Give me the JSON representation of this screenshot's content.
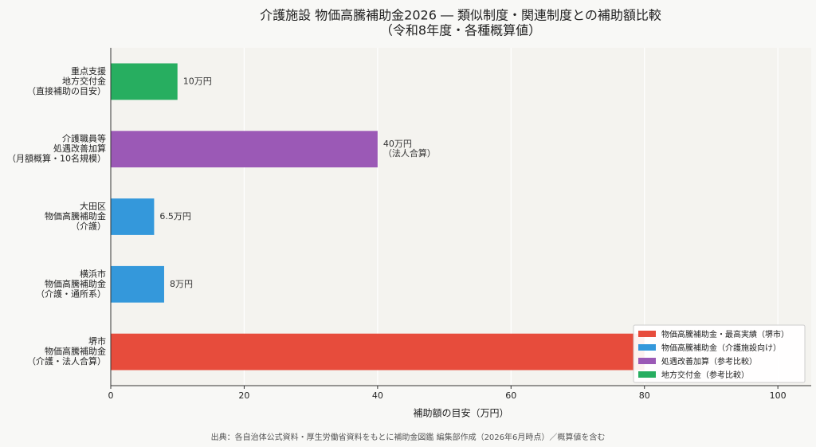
{
  "chart_data": {
    "type": "bar",
    "orientation": "horizontal",
    "title": [
      "介護施設 物価高騰補助金2026 ― 類似制度・関連制度との補助額比較",
      "（令和8年度・各種概算値）"
    ],
    "xlabel": "補助額の目安（万円）",
    "xlim": [
      0,
      105
    ],
    "xticks": [
      0,
      20,
      40,
      60,
      80,
      100
    ],
    "grid": true,
    "legend_position": "bottom-right",
    "legend": [
      {
        "label": "物価高騰補助金・最高実績（堺市）",
        "color": "#e74c3c"
      },
      {
        "label": "物価高騰補助金（介護施設向け）",
        "color": "#3498db"
      },
      {
        "label": "処遇改善加算（参考比較）",
        "color": "#9b59b6"
      },
      {
        "label": "地方交付金（参考比較）",
        "color": "#27ae60"
      }
    ],
    "bars": [
      {
        "category": [
          "重点支援",
          "地方交付金",
          "（直接補助の目安）"
        ],
        "value": 10,
        "color": "#27ae60",
        "label": [
          "10万円"
        ]
      },
      {
        "category": [
          "介護職員等",
          "処遇改善加算",
          "（月額概算・10名規模）"
        ],
        "value": 40,
        "color": "#9b59b6",
        "label": [
          "40万円",
          "（法人合算）"
        ]
      },
      {
        "category": [
          "大田区",
          "物価高騰補助金",
          "（介護）"
        ],
        "value": 6.5,
        "color": "#3498db",
        "label": [
          "6.5万円"
        ]
      },
      {
        "category": [
          "横浜市",
          "物価高騰補助金",
          "（介護・通所系）"
        ],
        "value": 8,
        "color": "#3498db",
        "label": [
          "8万円"
        ]
      },
      {
        "category": [
          "堺市",
          "物価高騰補助金",
          "（介護・法人合算）"
        ],
        "value": 80,
        "color": "#e74c3c",
        "label": []
      }
    ]
  },
  "footer": "出典：各自治体公式資料・厚生労働省資料をもとに補助金図鑑 編集部作成（2026年6月時点）／概算値を含む"
}
